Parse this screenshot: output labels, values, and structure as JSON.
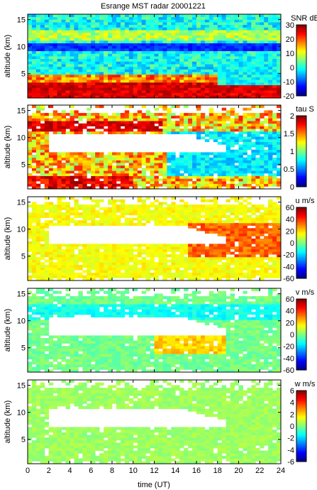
{
  "chart_data": {
    "type": "heatmap",
    "title": "Esrange MST radar 20001221",
    "xlabel": "time (UT)",
    "xlim": [
      0,
      24
    ],
    "x_ticks": [
      "0",
      "2",
      "4",
      "6",
      "8",
      "10",
      "12",
      "14",
      "16",
      "18",
      "20",
      "22",
      "24"
    ],
    "panels": [
      {
        "id": "snr",
        "ylabel": "altitude (km)",
        "ylim": [
          0.5,
          16
        ],
        "y_ticks": [
          "5",
          "10",
          "15"
        ],
        "colorbar_label": "SNR dB",
        "clim": [
          -20,
          30
        ],
        "colorbar_ticks": [
          "30",
          "20",
          "10",
          "0",
          "-10",
          "-20"
        ],
        "description_values": {
          "low_altitude_max": 30,
          "upper_altitude_typical": -5
        }
      },
      {
        "id": "tau",
        "ylabel": "altitude (km)",
        "ylim": [
          0.5,
          16
        ],
        "y_ticks": [
          "5",
          "10",
          "15"
        ],
        "colorbar_label": "tau S",
        "clim": [
          0,
          2
        ],
        "colorbar_ticks": [
          "2",
          "1.5",
          "1",
          "0.5",
          "0"
        ],
        "description_values": {
          "typical": 1.3
        }
      },
      {
        "id": "u",
        "ylabel": "altitude (km)",
        "ylim": [
          0.5,
          16
        ],
        "y_ticks": [
          "5",
          "10",
          "15"
        ],
        "colorbar_label": "u m/s",
        "clim": [
          -60,
          60
        ],
        "colorbar_ticks": [
          "60",
          "40",
          "20",
          "0",
          "-20",
          "-40",
          "-60"
        ],
        "description_values": {
          "typical": 10
        }
      },
      {
        "id": "v",
        "ylabel": "altitude (km)",
        "ylim": [
          0.5,
          16
        ],
        "y_ticks": [
          "5",
          "10",
          "15"
        ],
        "colorbar_label": "v m/s",
        "clim": [
          -60,
          60
        ],
        "colorbar_ticks": [
          "60",
          "40",
          "20",
          "0",
          "-20",
          "-40",
          "-60"
        ],
        "description_values": {
          "typical": -5
        }
      },
      {
        "id": "w",
        "ylabel": "altitude (km)",
        "ylim": [
          0.5,
          16
        ],
        "y_ticks": [
          "5",
          "10",
          "15"
        ],
        "colorbar_label": "w m/s",
        "clim": [
          -6,
          6
        ],
        "colorbar_ticks": [
          "6",
          "4",
          "2",
          "0",
          "-2",
          "-4",
          "-6"
        ],
        "description_values": {
          "typical": 0.5
        }
      }
    ]
  }
}
